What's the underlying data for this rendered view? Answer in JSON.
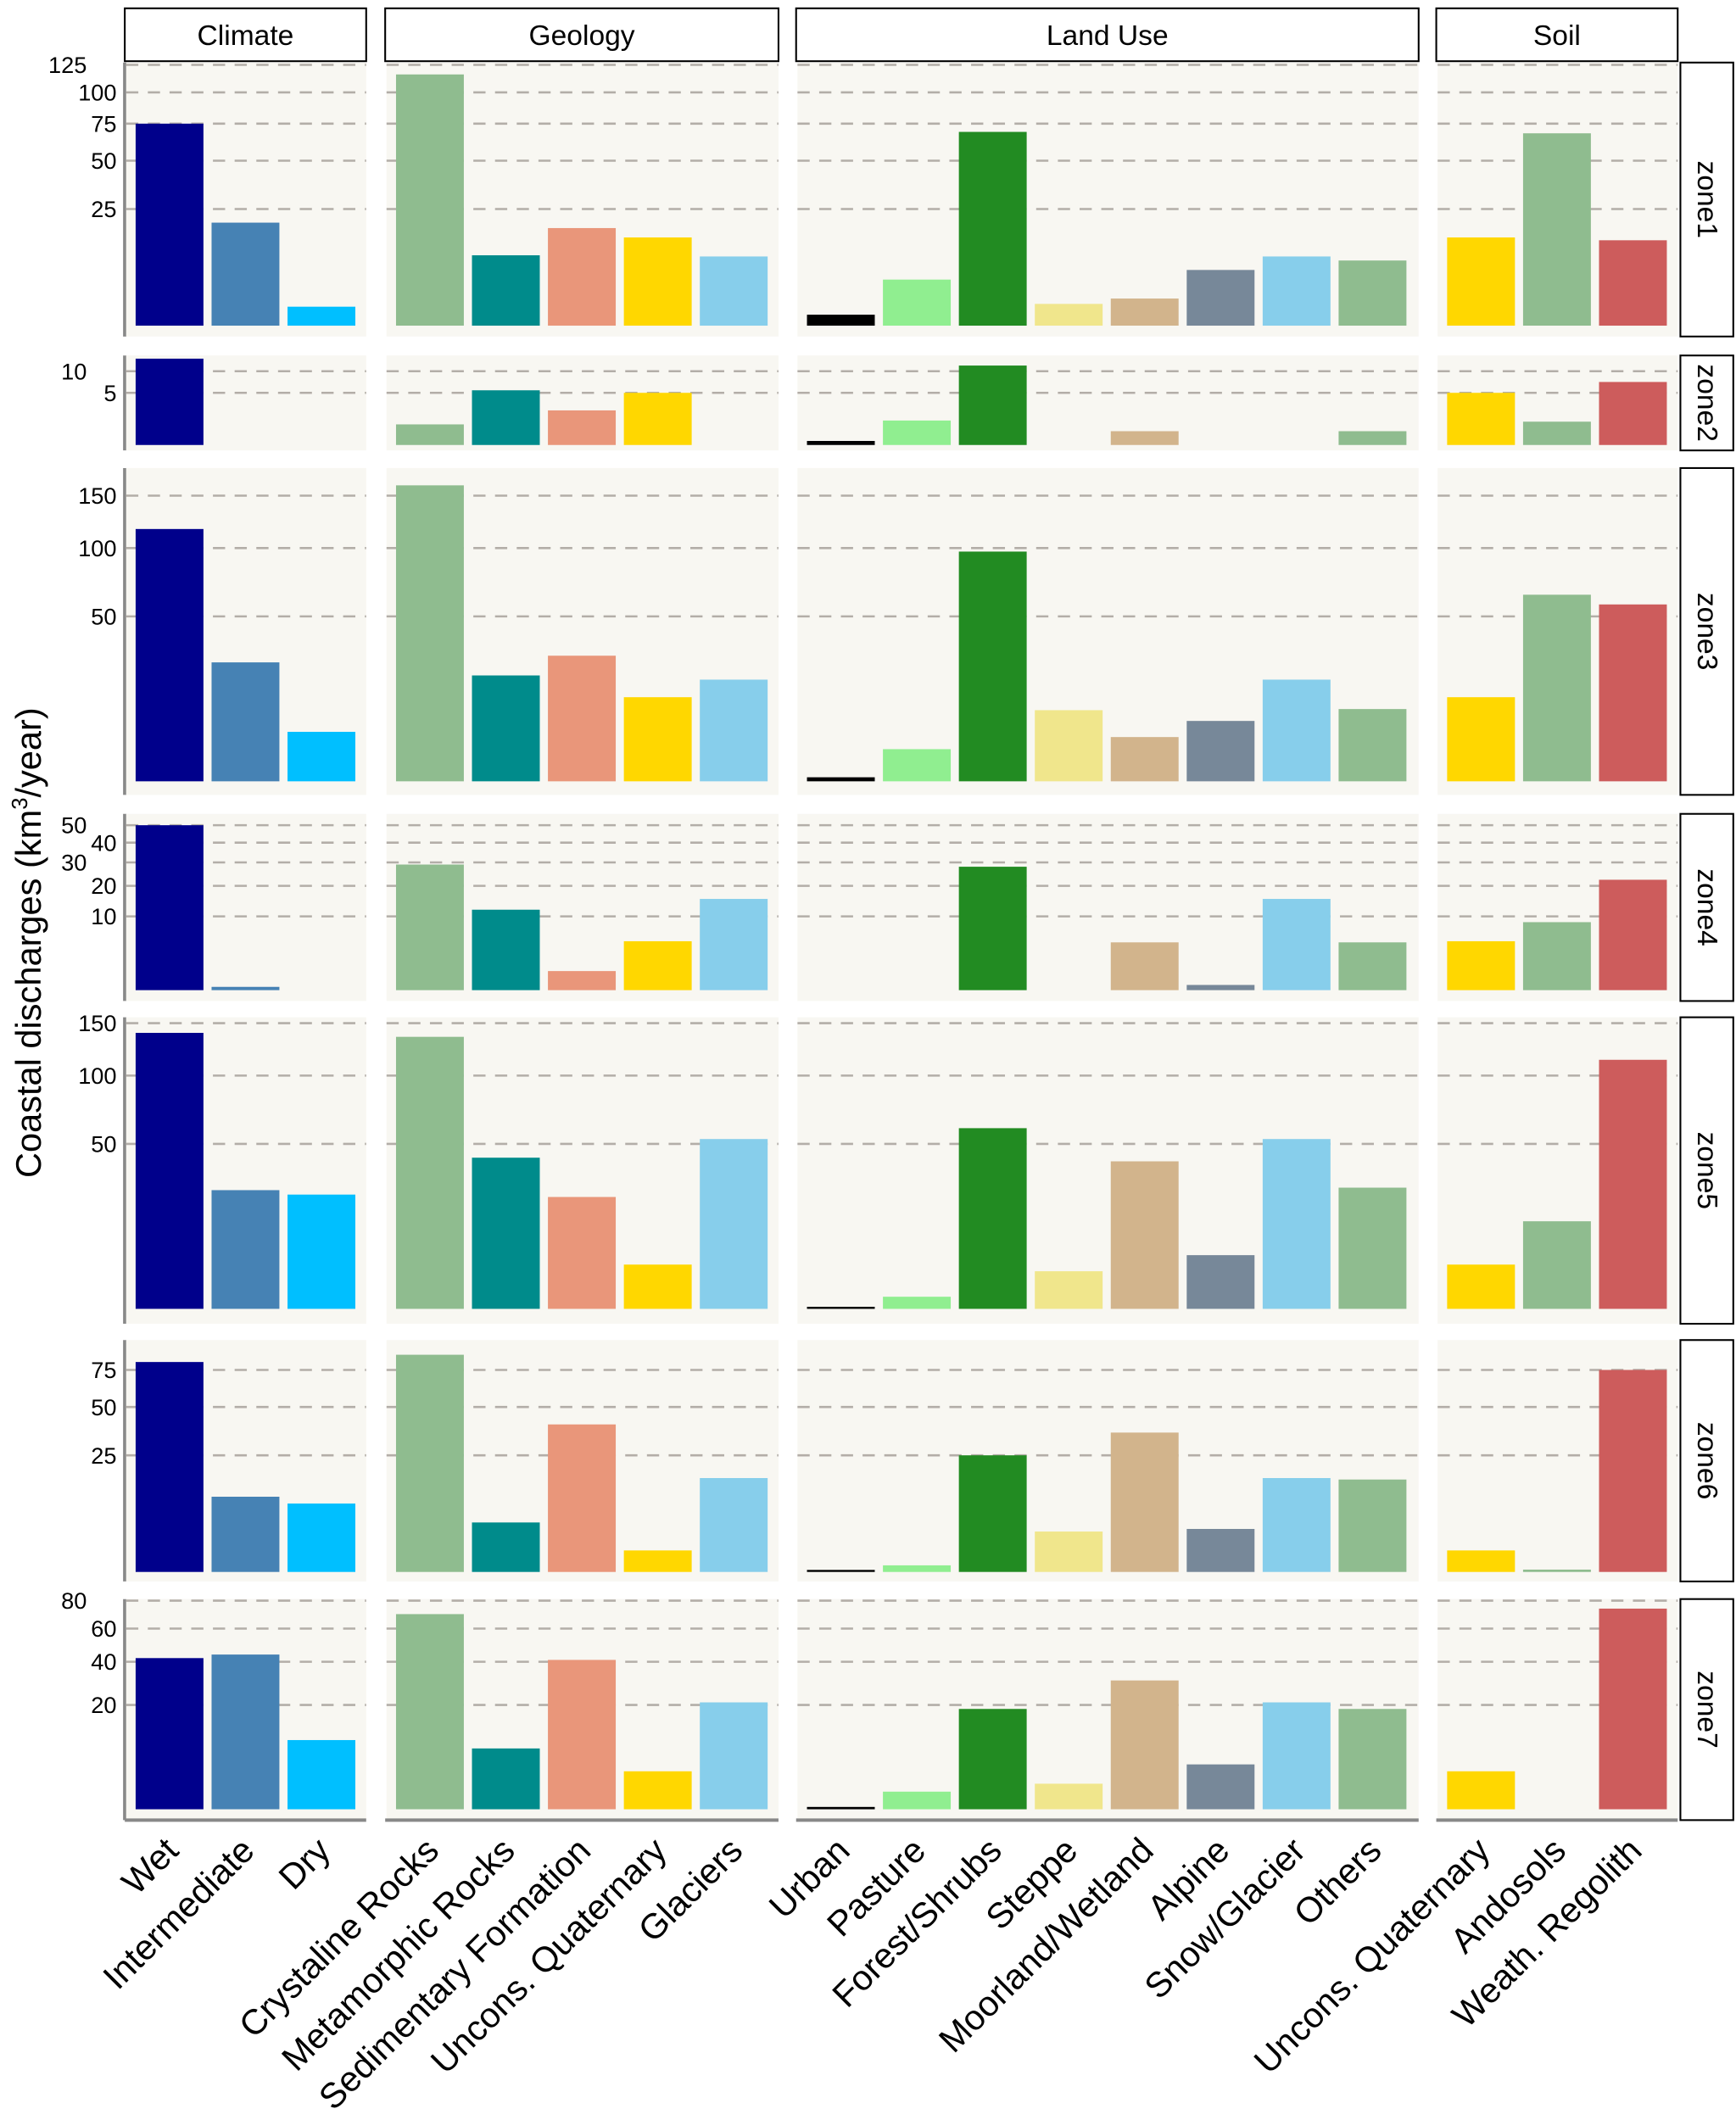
{
  "chart_data": {
    "type": "bar",
    "y_scale": "sqrt",
    "ylabel": {
      "prefix": "Coastal discharges  (km",
      "sup": "3",
      "suffix": "/year)"
    },
    "facet_columns": [
      {
        "label": "Climate",
        "categories": [
          "Wet",
          "Intermediate",
          "Dry"
        ],
        "colors": [
          "#00008B",
          "#4682B4",
          "#00BFFF"
        ]
      },
      {
        "label": "Geology",
        "categories": [
          "Crystaline Rocks",
          "Metamorphic Rocks",
          "Sedimentary Formation",
          "Uncons. Quaternary",
          "Glaciers"
        ],
        "colors": [
          "#8FBC8F",
          "#008B8B",
          "#E9967A",
          "#FFD700",
          "#87CEEB"
        ]
      },
      {
        "label": "Land Use",
        "categories": [
          "Urban",
          "Pasture",
          "Forest/Shrubs",
          "Steppe",
          "Moorland/Wetland",
          "Alpine",
          "Snow/Glacier",
          "Others"
        ],
        "colors": [
          "#000000",
          "#90EE90",
          "#228B22",
          "#F0E68C",
          "#D2B48C",
          "#778899",
          "#87CEEB",
          "#8FBC8F"
        ]
      },
      {
        "label": "Soil",
        "categories": [
          "Uncons. Quaternary",
          "Andosols",
          "Weath. Regolith"
        ],
        "colors": [
          "#FFD700",
          "#8FBC8F",
          "#CD5C5C"
        ]
      }
    ],
    "zones": [
      {
        "label": "zone1",
        "ticks": [
          "25",
          "50",
          "75",
          "100",
          "125"
        ],
        "values": [
          [
            75,
            19.5,
            0.66
          ],
          [
            116,
            9.1,
            17.5,
            14.3,
            8.8
          ],
          [
            0.22,
            3.9,
            69,
            0.87,
            1.35,
            5.7,
            8.8,
            7.8
          ],
          [
            14.3,
            68,
            13.4
          ]
        ]
      },
      {
        "label": "zone2",
        "ticks": [
          "5",
          "10"
        ],
        "values": [
          [
            13.7,
            0,
            0
          ],
          [
            0.78,
            5.5,
            2.2,
            5,
            0
          ],
          [
            0.03,
            1.1,
            11.6,
            0,
            0.35,
            0,
            0,
            0.35
          ],
          [
            5,
            1.0,
            7.3
          ]
        ]
      },
      {
        "label": "zone3",
        "ticks": [
          "50",
          "100",
          "150"
        ],
        "values": [
          [
            117,
            26,
            4.5
          ],
          [
            161,
            20.6,
            29,
            13,
            19
          ],
          [
            0.03,
            1.9,
            97,
            9.3,
            3.6,
            6.7,
            19,
            9.6
          ],
          [
            13,
            64,
            57.5
          ]
        ]
      },
      {
        "label": "zone4",
        "ticks": [
          "10",
          "20",
          "30",
          "40",
          "50"
        ],
        "values": [
          [
            50,
            0.02,
            0
          ],
          [
            29,
            11.9,
            0.67,
            4.4,
            15.3
          ],
          [
            0,
            0,
            28,
            0,
            4.2,
            0.05,
            15.3,
            4.2
          ],
          [
            4.4,
            8.5,
            22.4
          ]
        ]
      },
      {
        "label": "zone5",
        "ticks": [
          "50",
          "100",
          "150"
        ],
        "values": [
          [
            140,
            25.9,
            24
          ],
          [
            136,
            42,
            23,
            3.6,
            53
          ],
          [
            0.005,
            0.27,
            60,
            2.6,
            40,
            5.3,
            53,
            27
          ],
          [
            3.6,
            14.1,
            114
          ]
        ]
      },
      {
        "label": "zone6",
        "ticks": [
          "25",
          "50",
          "75"
        ],
        "values": [
          [
            81,
            10.4,
            8.6
          ],
          [
            86.7,
            4.5,
            40,
            0.85,
            16.2
          ],
          [
            0.005,
            0.08,
            25,
            3,
            35.7,
            3.4,
            16.2,
            15.7
          ],
          [
            0.85,
            0.01,
            75
          ]
        ]
      },
      {
        "label": "zone7",
        "ticks": [
          "20",
          "40",
          "60",
          "80"
        ],
        "values": [
          [
            42,
            44,
            8.8
          ],
          [
            70,
            6.8,
            41,
            2.65,
            21
          ],
          [
            0.01,
            0.57,
            18.5,
            1.2,
            30.5,
            3.7,
            21,
            18.5
          ],
          [
            2.65,
            0,
            74
          ]
        ]
      }
    ]
  }
}
